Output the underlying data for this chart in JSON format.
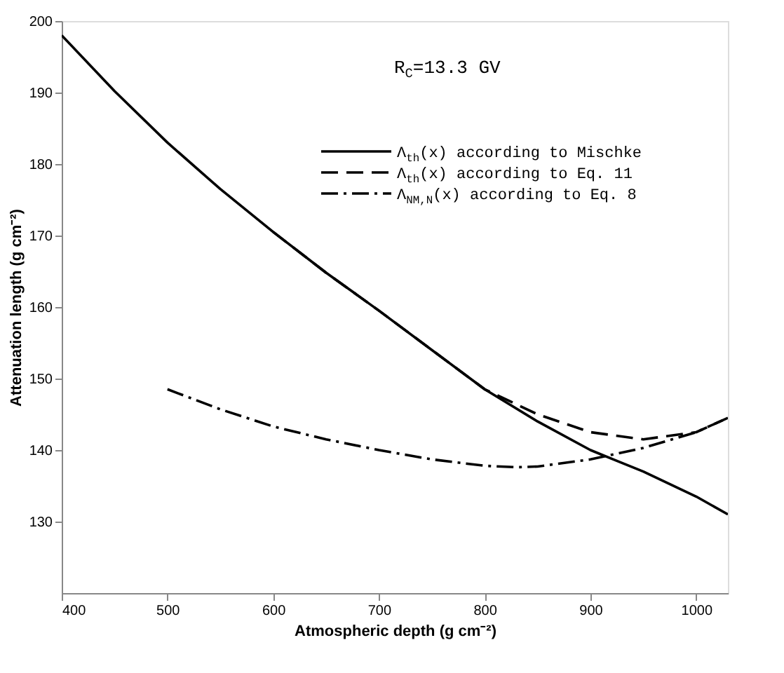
{
  "chart_data": {
    "type": "line",
    "xlabel": "Atmospheric depth (g cm⁻²)",
    "ylabel": "Attenuation length (g cm⁻²)",
    "xlim": [
      400,
      1030
    ],
    "xticks": [
      400,
      500,
      600,
      700,
      800,
      900,
      {
        "value": 1000,
        "label": "1000"
      }
    ],
    "ylim": [
      120,
      200
    ],
    "yticks": [
      130,
      140,
      150,
      160,
      170,
      180,
      190,
      200
    ],
    "grid": false,
    "legend": "top right",
    "marker": "none",
    "annotations": [
      "R$_{C}$=13.3 GV"
    ],
    "series": [
      {
        "name": "Λ$_{th}$(x)  according to Mischke",
        "color": "#000000",
        "line_style": "solid",
        "x": [
          400,
          450,
          500,
          550,
          600,
          650,
          700,
          750,
          800,
          850,
          900,
          925,
          950,
          1000,
          1030
        ],
        "values": [
          198,
          190.2,
          183,
          176.5,
          170.5,
          164.8,
          159.5,
          154,
          148.5,
          144,
          140,
          138.5,
          137,
          133.5,
          131
        ]
      },
      {
        "name": "Λ$_{th}$(x)  according to Eq. 11",
        "color": "#000000",
        "line_style": "dashed",
        "x": [
          600,
          650,
          700,
          750,
          800,
          850,
          900,
          950,
          1000,
          1030
        ],
        "values": [
          170.5,
          164.8,
          159.5,
          154,
          148.5,
          145,
          142.5,
          141.5,
          142.5,
          144.5
        ]
      },
      {
        "name": "Λ$_{NM,N}$(x) according to Eq. 8",
        "color": "#000000",
        "line_style": "dashdot",
        "x": [
          500,
          550,
          600,
          650,
          700,
          750,
          800,
          830,
          850,
          900,
          950,
          1000,
          1030
        ],
        "values": [
          148.5,
          145.7,
          143.3,
          141.5,
          140,
          138.7,
          137.8,
          137.6,
          137.7,
          138.7,
          140.3,
          142.5,
          144.5
        ]
      }
    ]
  }
}
